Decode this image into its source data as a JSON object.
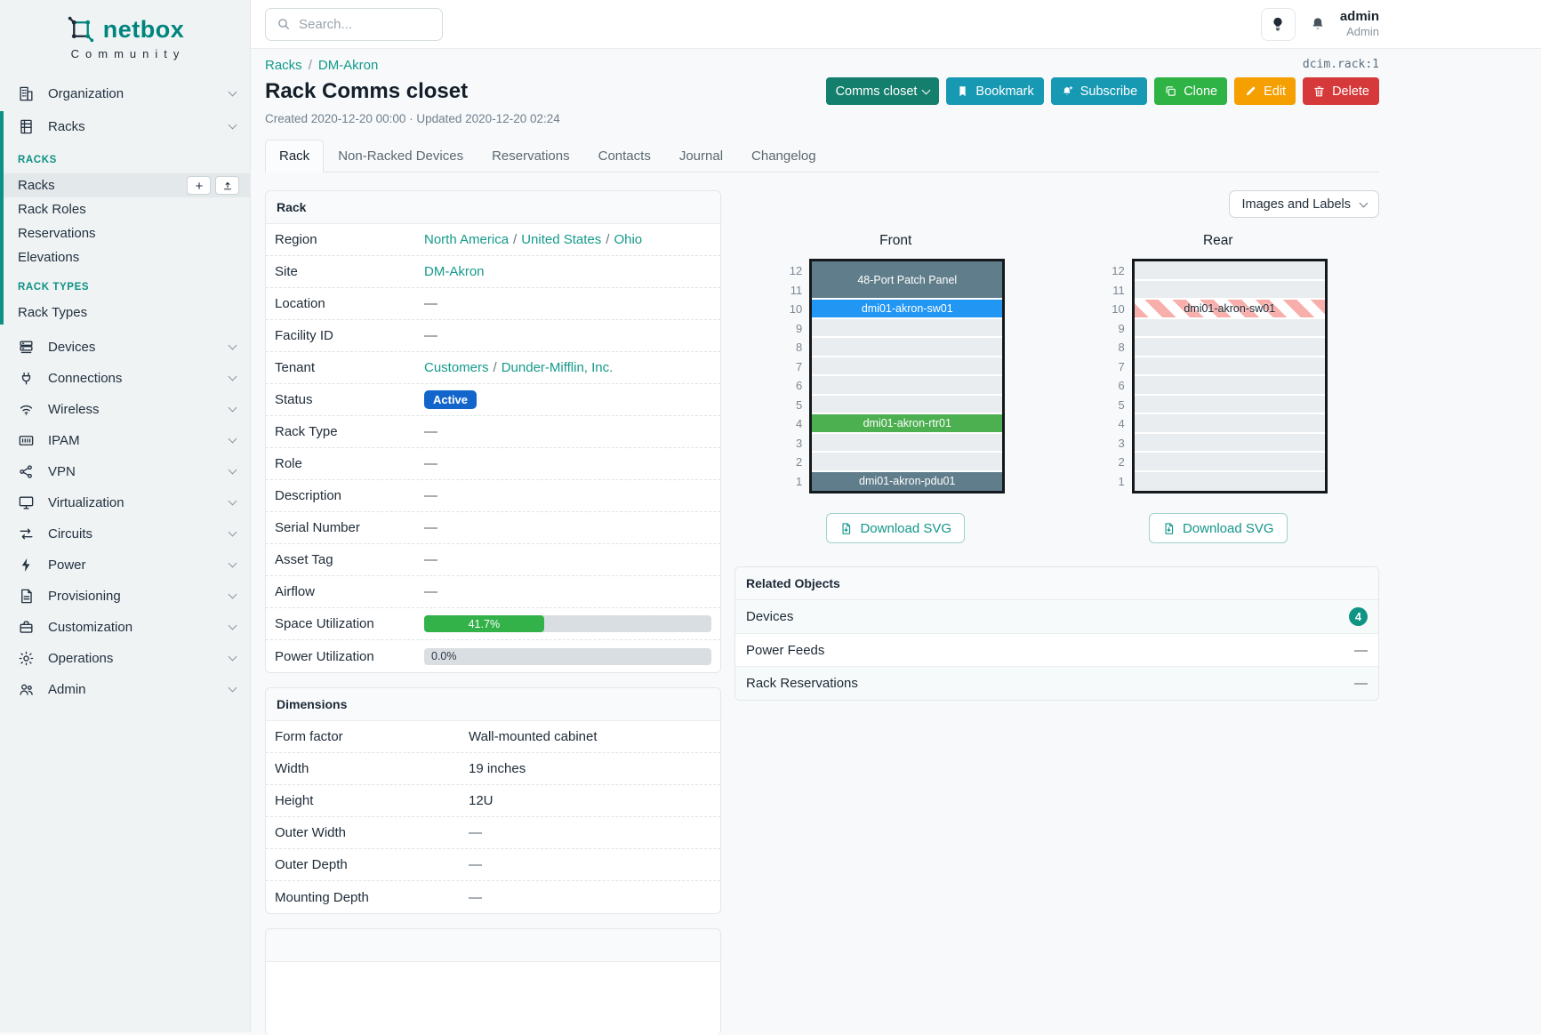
{
  "brand": {
    "name": "netbox",
    "subtitle": "Community"
  },
  "topbar": {
    "search_placeholder": "Search...",
    "user_name": "admin",
    "user_role": "Admin"
  },
  "object_ref": "dcim.rack:1",
  "breadcrumb": {
    "items": [
      "Racks",
      "DM-Akron"
    ],
    "sep": "/"
  },
  "page": {
    "title": "Rack Comms closet",
    "meta": "Created 2020-12-20 00:00 · Updated 2020-12-20 02:24"
  },
  "actions": {
    "name_dropdown": "Comms closet",
    "bookmark": "Bookmark",
    "subscribe": "Subscribe",
    "clone": "Clone",
    "edit": "Edit",
    "delete": "Delete"
  },
  "tabs": [
    {
      "label": "Rack",
      "active": true
    },
    {
      "label": "Non-Racked Devices",
      "active": false
    },
    {
      "label": "Reservations",
      "active": false
    },
    {
      "label": "Contacts",
      "active": false
    },
    {
      "label": "Journal",
      "active": false
    },
    {
      "label": "Changelog",
      "active": false
    }
  ],
  "sidebar": {
    "items": [
      {
        "type": "menu",
        "label": "Organization",
        "icon": "building-icon"
      },
      {
        "type": "menu",
        "label": "Racks",
        "icon": "rack-icon",
        "expanded": true,
        "children": [
          {
            "type": "header",
            "label": "RACKS"
          },
          {
            "type": "link",
            "label": "Racks",
            "active": true,
            "buttons": [
              "plus-icon",
              "import-icon"
            ]
          },
          {
            "type": "link",
            "label": "Rack Roles"
          },
          {
            "type": "link",
            "label": "Reservations"
          },
          {
            "type": "link",
            "label": "Elevations"
          },
          {
            "type": "header",
            "label": "RACK TYPES"
          },
          {
            "type": "link",
            "label": "Rack Types"
          }
        ]
      },
      {
        "type": "menu",
        "label": "Devices",
        "icon": "server-icon"
      },
      {
        "type": "menu",
        "label": "Connections",
        "icon": "plug-icon"
      },
      {
        "type": "menu",
        "label": "Wireless",
        "icon": "wifi-icon"
      },
      {
        "type": "menu",
        "label": "IPAM",
        "icon": "ipam-icon"
      },
      {
        "type": "menu",
        "label": "VPN",
        "icon": "network-icon"
      },
      {
        "type": "menu",
        "label": "Virtualization",
        "icon": "monitor-icon"
      },
      {
        "type": "menu",
        "label": "Circuits",
        "icon": "circuits-icon"
      },
      {
        "type": "menu",
        "label": "Power",
        "icon": "bolt-icon"
      },
      {
        "type": "menu",
        "label": "Provisioning",
        "icon": "file-icon"
      },
      {
        "type": "menu",
        "label": "Customization",
        "icon": "briefcase-icon"
      },
      {
        "type": "menu",
        "label": "Operations",
        "icon": "gear-icon"
      },
      {
        "type": "menu",
        "label": "Admin",
        "icon": "users-icon"
      }
    ]
  },
  "rack_panel": {
    "title": "Rack",
    "rows": [
      {
        "label": "Region",
        "value": {
          "kind": "links",
          "parts": [
            "North America",
            "United States",
            "Ohio"
          ]
        }
      },
      {
        "label": "Site",
        "value": {
          "kind": "links",
          "parts": [
            "DM-Akron"
          ]
        }
      },
      {
        "label": "Location",
        "value": {
          "kind": "dash"
        }
      },
      {
        "label": "Facility ID",
        "value": {
          "kind": "dash"
        }
      },
      {
        "label": "Tenant",
        "value": {
          "kind": "links",
          "parts": [
            "Customers",
            "Dunder-Mifflin, Inc."
          ]
        }
      },
      {
        "label": "Status",
        "value": {
          "kind": "badge",
          "text": "Active",
          "color": "#1265cb"
        }
      },
      {
        "label": "Rack Type",
        "value": {
          "kind": "dash"
        }
      },
      {
        "label": "Role",
        "value": {
          "kind": "dash"
        }
      },
      {
        "label": "Description",
        "value": {
          "kind": "dash"
        }
      },
      {
        "label": "Serial Number",
        "value": {
          "kind": "dash"
        }
      },
      {
        "label": "Asset Tag",
        "value": {
          "kind": "dash"
        }
      },
      {
        "label": "Airflow",
        "value": {
          "kind": "dash"
        }
      },
      {
        "label": "Space Utilization",
        "value": {
          "kind": "progress",
          "percent": 41.7,
          "text": "41.7%",
          "fill": "#33b249"
        }
      },
      {
        "label": "Power Utilization",
        "value": {
          "kind": "progress",
          "percent": 0,
          "text": "0.0%",
          "fill": "#33b249"
        }
      }
    ]
  },
  "dimensions_panel": {
    "title": "Dimensions",
    "rows": [
      {
        "label": "Form factor",
        "value": {
          "kind": "text",
          "text": "Wall-mounted cabinet"
        }
      },
      {
        "label": "Width",
        "value": {
          "kind": "text",
          "text": "19 inches"
        }
      },
      {
        "label": "Height",
        "value": {
          "kind": "text",
          "text": "12U"
        }
      },
      {
        "label": "Outer Width",
        "value": {
          "kind": "dash"
        }
      },
      {
        "label": "Outer Depth",
        "value": {
          "kind": "dash"
        }
      },
      {
        "label": "Mounting Depth",
        "value": {
          "kind": "dash"
        }
      }
    ]
  },
  "elevations": {
    "view_toggle": "Images and Labels",
    "download_label": "Download SVG",
    "unit_count": 12,
    "front": {
      "label": "Front",
      "devices": [
        {
          "top_unit": 12,
          "span": 2,
          "name": "48-Port Patch Panel",
          "color": "#607d8b",
          "text_color": "#ffffff"
        },
        {
          "top_unit": 10,
          "span": 1,
          "name": "dmi01-akron-sw01",
          "color": "#2196f3",
          "text_color": "#ffffff"
        },
        {
          "top_unit": 4,
          "span": 1,
          "name": "dmi01-akron-rtr01",
          "color": "#4caf50",
          "text_color": "#ffffff"
        },
        {
          "top_unit": 1,
          "span": 1,
          "name": "dmi01-akron-pdu01",
          "color": "#607d8b",
          "text_color": "#ffffff"
        }
      ]
    },
    "rear": {
      "label": "Rear",
      "devices": [
        {
          "top_unit": 10,
          "span": 1,
          "name": "dmi01-akron-sw01",
          "striped": true,
          "text_color": "#1c2733"
        }
      ]
    }
  },
  "related_objects": {
    "title": "Related Objects",
    "rows": [
      {
        "label": "Devices",
        "count": "4"
      },
      {
        "label": "Power Feeds",
        "dash": true
      },
      {
        "label": "Rack Reservations",
        "dash": true
      }
    ]
  },
  "colors": {
    "brand_teal": "#00857e",
    "link_teal": "#149a8b",
    "sidebar_accent": "#0e9184",
    "status_active": "#1265cb",
    "utilization_green": "#33b249",
    "count_badge": "#0e9384",
    "btn_rename": "#157f6d",
    "btn_info": "#1799b4",
    "btn_clone": "#2fb344",
    "btn_edit": "#f59f00",
    "btn_delete": "#d63939"
  }
}
